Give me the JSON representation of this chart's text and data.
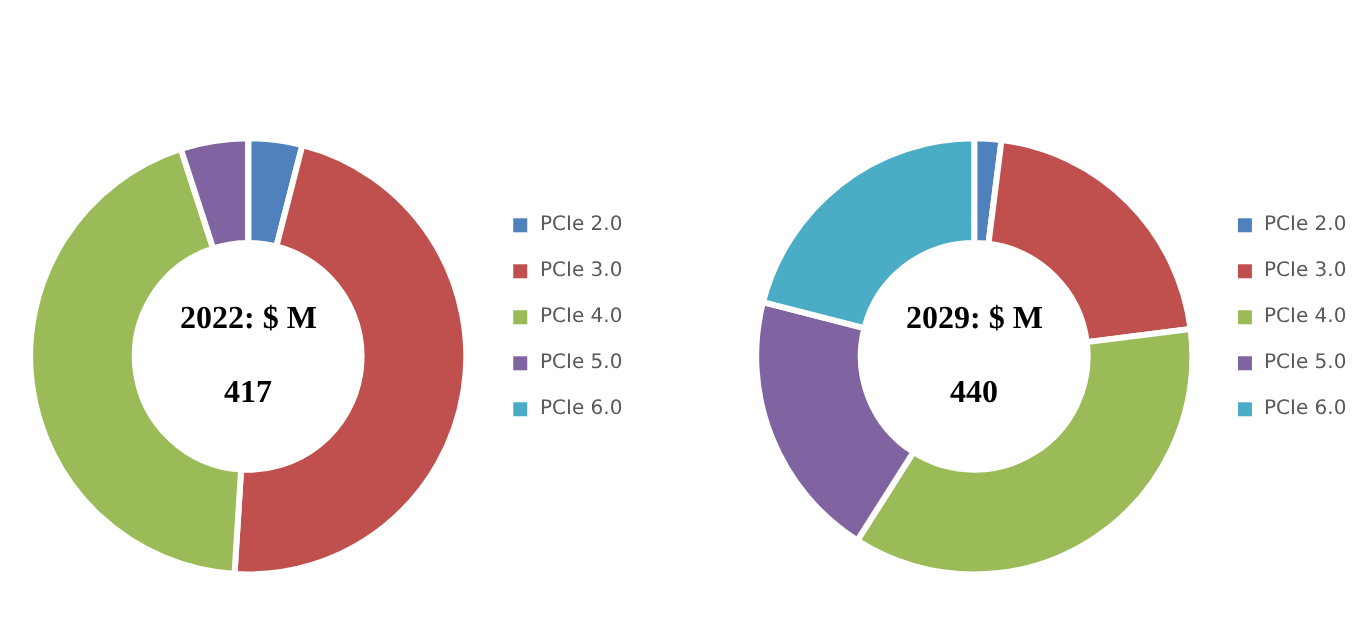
{
  "chart_data": [
    {
      "type": "donut",
      "categories": [
        "PCIe 2.0",
        "PCIe 3.0",
        "PCIe 4.0",
        "PCIe 5.0",
        "PCIe 6.0"
      ],
      "values": [
        4,
        47,
        44,
        5,
        0
      ],
      "colors": [
        "#4f81bd",
        "#c0504d",
        "#9bbb59",
        "#8064a2",
        "#4bacc6"
      ],
      "annotations": [
        "2022: $ M",
        "417"
      ],
      "legend": "right"
    },
    {
      "type": "donut",
      "categories": [
        "PCIe 2.0",
        "PCIe 3.0",
        "PCIe 4.0",
        "PCIe 5.0",
        "PCIe 6.0"
      ],
      "values": [
        2,
        21,
        36,
        20,
        21
      ],
      "colors": [
        "#4f81bd",
        "#c0504d",
        "#9bbb59",
        "#8064a2",
        "#4bacc6"
      ],
      "annotations": [
        "2029: $ M",
        "440"
      ],
      "legend": "right"
    }
  ]
}
